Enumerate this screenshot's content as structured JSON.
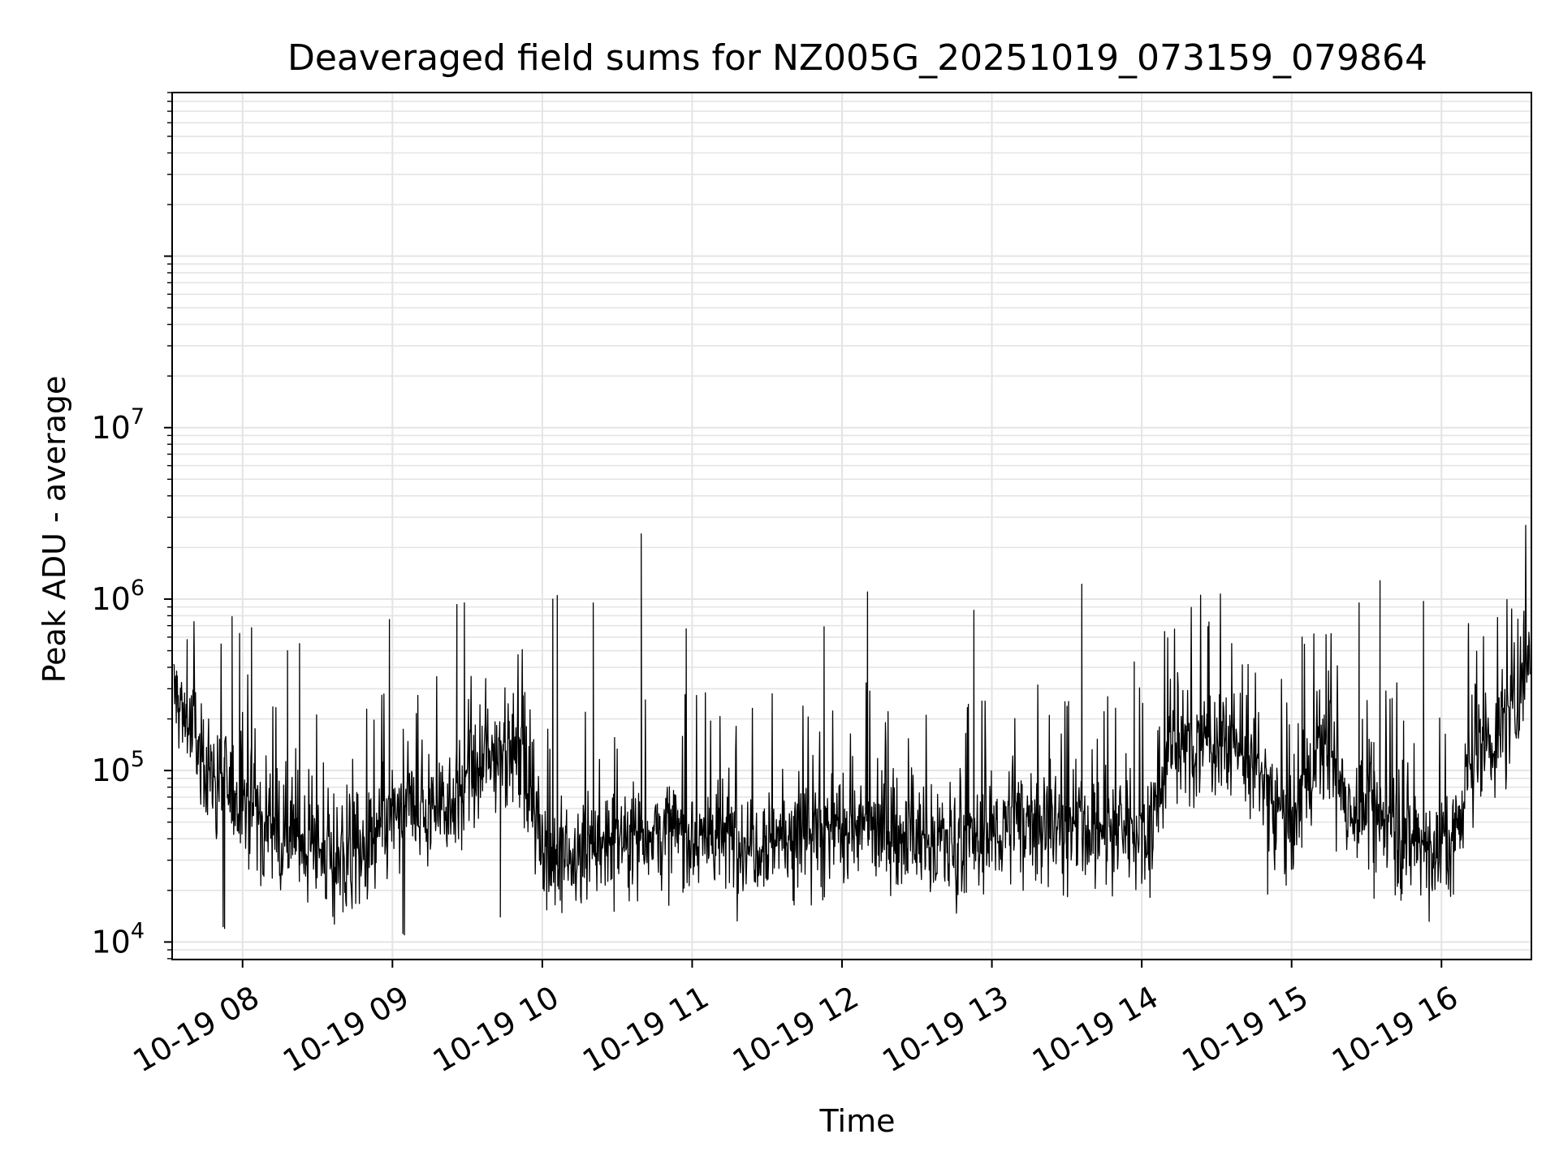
{
  "chart_data": {
    "type": "line",
    "title": "Deaveraged field sums for NZ005G_20251019_073159_079864",
    "xlabel": "Time",
    "ylabel": "Peak ADU - average",
    "yscale": "log",
    "ylim": [
      7900,
      900000000
    ],
    "xlim_hours": [
      7.53,
      16.6
    ],
    "grid": true,
    "x_ticks": [
      {
        "hour": 8,
        "label": "10-19 08"
      },
      {
        "hour": 9,
        "label": "10-19 09"
      },
      {
        "hour": 10,
        "label": "10-19 10"
      },
      {
        "hour": 11,
        "label": "10-19 11"
      },
      {
        "hour": 12,
        "label": "10-19 12"
      },
      {
        "hour": 13,
        "label": "10-19 13"
      },
      {
        "hour": 14,
        "label": "10-19 14"
      },
      {
        "hour": 15,
        "label": "10-19 15"
      },
      {
        "hour": 16,
        "label": "10-19 16"
      }
    ],
    "y_ticks": [
      {
        "value": 10000,
        "base": "10",
        "exp": "4"
      },
      {
        "value": 100000,
        "base": "10",
        "exp": "5"
      },
      {
        "value": 1000000,
        "base": "10",
        "exp": "6"
      },
      {
        "value": 10000000,
        "base": "10",
        "exp": "7"
      }
    ],
    "series": [
      {
        "name": "Peak ADU - average",
        "color": "#000000",
        "baseline_hours": [
          7.53,
          7.6,
          7.75,
          7.9,
          8.1,
          8.3,
          8.55,
          8.8,
          9.0,
          9.2,
          9.4,
          9.6,
          9.75,
          9.9,
          10.05,
          10.3,
          10.6,
          11.0,
          11.4,
          11.8,
          12.1,
          12.5,
          12.9,
          13.2,
          13.5,
          13.8,
          14.05,
          14.2,
          14.4,
          14.6,
          14.8,
          15.0,
          15.2,
          15.4,
          15.6,
          15.8,
          16.0,
          16.1,
          16.2,
          16.35,
          16.5,
          16.6
        ],
        "baseline_values": [
          300000,
          220000,
          110000,
          80000,
          60000,
          45000,
          32000,
          30000,
          55000,
          60000,
          70000,
          100000,
          160000,
          90000,
          30000,
          32000,
          45000,
          42000,
          40000,
          45000,
          48000,
          40000,
          38000,
          55000,
          48000,
          45000,
          48000,
          130000,
          150000,
          160000,
          90000,
          50000,
          140000,
          60000,
          55000,
          40000,
          35000,
          45000,
          120000,
          150000,
          250000,
          650000
        ],
        "spikes": [
          {
            "hour": 7.56,
            "value": 380000
          },
          {
            "hour": 7.63,
            "value": 580000
          },
          {
            "hour": 7.88,
            "value": 12000
          },
          {
            "hour": 7.93,
            "value": 790000
          },
          {
            "hour": 7.98,
            "value": 630000
          },
          {
            "hour": 8.06,
            "value": 680000
          },
          {
            "hour": 8.3,
            "value": 500000
          },
          {
            "hour": 8.38,
            "value": 550000
          },
          {
            "hour": 8.98,
            "value": 760000
          },
          {
            "hour": 9.08,
            "value": 11000
          },
          {
            "hour": 9.43,
            "value": 930000
          },
          {
            "hour": 9.48,
            "value": 950000
          },
          {
            "hour": 9.72,
            "value": 14000
          },
          {
            "hour": 10.07,
            "value": 1000000
          },
          {
            "hour": 10.1,
            "value": 1050000
          },
          {
            "hour": 10.34,
            "value": 950000
          },
          {
            "hour": 10.66,
            "value": 2400000
          },
          {
            "hour": 10.96,
            "value": 670000
          },
          {
            "hour": 11.88,
            "value": 690000
          },
          {
            "hour": 12.17,
            "value": 1100000
          },
          {
            "hour": 12.88,
            "value": 860000
          },
          {
            "hour": 13.6,
            "value": 1220000
          },
          {
            "hour": 13.95,
            "value": 430000
          },
          {
            "hour": 14.6,
            "value": 550000
          },
          {
            "hour": 15.07,
            "value": 600000
          },
          {
            "hour": 15.23,
            "value": 620000
          },
          {
            "hour": 15.45,
            "value": 950000
          },
          {
            "hour": 15.59,
            "value": 1280000
          },
          {
            "hour": 15.88,
            "value": 970000
          },
          {
            "hour": 16.18,
            "value": 720000
          },
          {
            "hour": 16.55,
            "value": 850000
          }
        ],
        "dips": [
          {
            "hour": 7.87,
            "value": 12300
          },
          {
            "hour": 8.67,
            "value": 15000
          },
          {
            "hour": 9.07,
            "value": 11200
          },
          {
            "hour": 9.72,
            "value": 14000
          },
          {
            "hour": 10.03,
            "value": 17000
          },
          {
            "hour": 10.12,
            "value": 17500
          },
          {
            "hour": 11.86,
            "value": 21000
          },
          {
            "hour": 13.33,
            "value": 22000
          },
          {
            "hour": 14.0,
            "value": 22000
          },
          {
            "hour": 14.84,
            "value": 19000
          },
          {
            "hour": 15.55,
            "value": 18000
          },
          {
            "hour": 15.73,
            "value": 17500
          },
          {
            "hour": 16.08,
            "value": 19000
          }
        ]
      }
    ]
  }
}
